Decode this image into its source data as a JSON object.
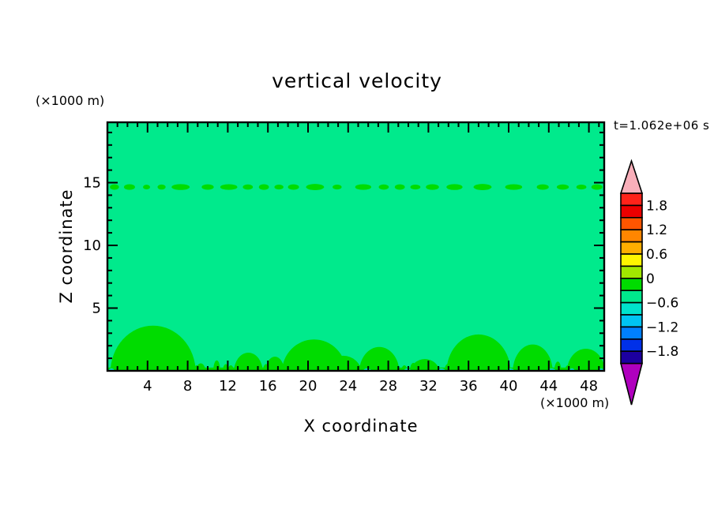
{
  "chart_data": {
    "type": "contour",
    "title": "vertical velocity",
    "xlabel": "X coordinate",
    "ylabel": "Z coordinate",
    "x_unit_label": "(×1000 m)",
    "y_unit_label": "(×1000 m)",
    "time_label": "t=1.062e+06 s",
    "x_axis": {
      "range": [
        0,
        49.5
      ],
      "labeled_ticks": [
        4,
        8,
        12,
        16,
        20,
        24,
        28,
        32,
        36,
        40,
        44,
        48
      ],
      "minor_step": 1,
      "major_step": 4
    },
    "y_axis": {
      "range": [
        0,
        19.8
      ],
      "labeled_ticks": [
        5,
        10,
        15
      ],
      "minor_step": 1,
      "major_step": 5
    },
    "colorbar": {
      "level_min": -2.1,
      "level_max": 2.1,
      "level_step": 0.3,
      "tick_labels": [
        "1.8",
        "1.2",
        "0.6",
        "0",
        "−0.6",
        "−1.2",
        "−1.8"
      ],
      "box_colors_top_to_bottom": [
        "#FF231A",
        "#EC0000",
        "#FF5500",
        "#FF8600",
        "#FFAE00",
        "#FFF500",
        "#A0E800",
        "#00DC00",
        "#00E88C",
        "#00E2CC",
        "#00C4F2",
        "#0080FF",
        "#0030E8",
        "#1C00A0"
      ],
      "over_arrow_color": "#F9AFBA",
      "under_arrow_color": "#B000BE",
      "outline_color": "#000000"
    },
    "field": {
      "background_color": "#00EA8C",
      "blob_color": "#00DC00",
      "cyan_patch_color": "#00E2CC",
      "frame_color": "#000000",
      "ground_strip_height": 0.26,
      "mounds": [
        [
          4.55,
          4.25,
          3.6
        ],
        [
          9.3,
          0.5,
          0.6
        ],
        [
          14.05,
          1.45,
          1.45
        ],
        [
          16.7,
          0.95,
          1.13
        ],
        [
          20.6,
          3.2,
          2.5
        ],
        [
          23.5,
          1.8,
          1.2
        ],
        [
          27.1,
          2.0,
          1.9
        ],
        [
          31.65,
          1.45,
          0.94
        ],
        [
          37.0,
          3.2,
          2.9
        ],
        [
          42.4,
          2.0,
          2.1
        ],
        [
          47.7,
          1.9,
          1.76
        ]
      ],
      "ground_bumps": [
        [
          2.2,
          0.35,
          0.7
        ],
        [
          3.1,
          0.3,
          0.5
        ],
        [
          5.2,
          0.3,
          0.6
        ],
        [
          6.8,
          0.35,
          0.8
        ],
        [
          8.9,
          0.3,
          0.5
        ],
        [
          10.9,
          0.35,
          0.9
        ],
        [
          11.8,
          0.3,
          0.6
        ],
        [
          12.3,
          0.3,
          0.5
        ],
        [
          15.8,
          0.3,
          0.6
        ],
        [
          17.2,
          0.35,
          0.7
        ],
        [
          18.1,
          0.3,
          0.5
        ],
        [
          22.4,
          0.35,
          0.6
        ],
        [
          25.2,
          0.3,
          0.5
        ],
        [
          26.3,
          0.35,
          0.8
        ],
        [
          28.3,
          0.4,
          0.9
        ],
        [
          29.6,
          0.3,
          0.5
        ],
        [
          30.5,
          0.35,
          0.7
        ],
        [
          33.9,
          0.3,
          0.6
        ],
        [
          35.1,
          0.35,
          0.8
        ],
        [
          38.6,
          0.3,
          0.5
        ],
        [
          39.4,
          0.35,
          0.7
        ],
        [
          41.3,
          0.3,
          0.5
        ],
        [
          44.9,
          0.35,
          0.8
        ],
        [
          45.9,
          0.3,
          0.5
        ],
        [
          46.8,
          0.35,
          0.7
        ],
        [
          48.3,
          0.3,
          0.6
        ]
      ],
      "tropopause_blob_z": 14.65,
      "tropopause_blobs": [
        [
          0.7,
          0.45,
          0.28
        ],
        [
          2.2,
          0.55,
          0.3
        ],
        [
          3.9,
          0.35,
          0.22
        ],
        [
          5.4,
          0.4,
          0.25
        ],
        [
          7.3,
          0.9,
          0.32
        ],
        [
          10.0,
          0.6,
          0.28
        ],
        [
          12.1,
          0.85,
          0.3
        ],
        [
          14.0,
          0.5,
          0.26
        ],
        [
          15.6,
          0.5,
          0.3
        ],
        [
          17.1,
          0.45,
          0.24
        ],
        [
          18.55,
          0.55,
          0.28
        ],
        [
          20.7,
          0.9,
          0.34
        ],
        [
          22.9,
          0.45,
          0.24
        ],
        [
          25.5,
          0.8,
          0.3
        ],
        [
          27.55,
          0.5,
          0.26
        ],
        [
          29.15,
          0.5,
          0.28
        ],
        [
          30.7,
          0.5,
          0.24
        ],
        [
          32.4,
          0.65,
          0.3
        ],
        [
          34.6,
          0.8,
          0.32
        ],
        [
          37.4,
          0.9,
          0.34
        ],
        [
          40.5,
          0.85,
          0.3
        ],
        [
          43.4,
          0.6,
          0.28
        ],
        [
          45.4,
          0.6,
          0.26
        ],
        [
          47.25,
          0.5,
          0.24
        ],
        [
          48.8,
          0.55,
          0.28
        ]
      ],
      "cyan_patches": [
        [
          0.4,
          0.3
        ],
        [
          25.9,
          0.4
        ],
        [
          29.9,
          0.35
        ],
        [
          33.3,
          0.4
        ],
        [
          40.2,
          0.35
        ],
        [
          44.3,
          0.4
        ],
        [
          46.3,
          0.3
        ],
        [
          49.2,
          0.3
        ]
      ]
    }
  }
}
